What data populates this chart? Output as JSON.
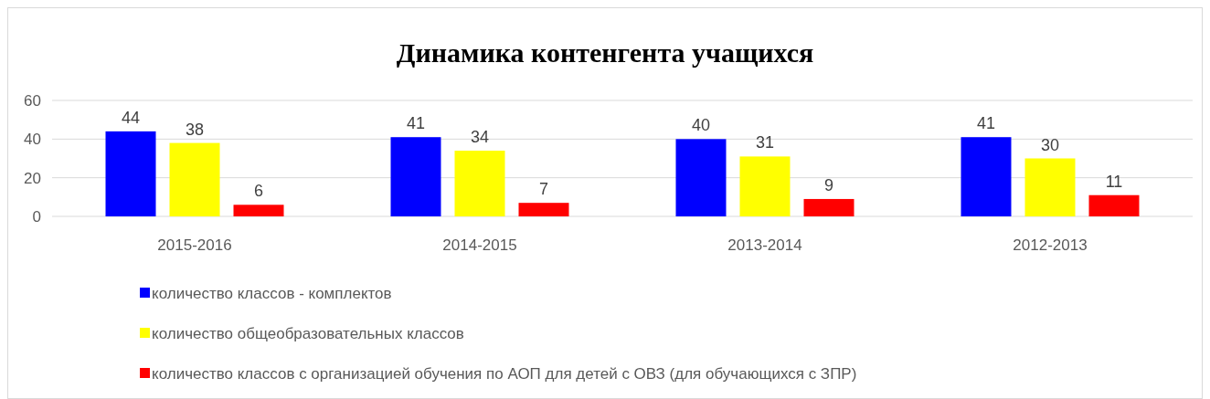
{
  "chart_data": {
    "type": "bar",
    "title": "Динамика контенгента учащихся",
    "categories": [
      "2015-2016",
      "2014-2015",
      "2013-2014",
      "2012-2013"
    ],
    "series": [
      {
        "name": "количество классов - комплектов",
        "color": "#0000ff",
        "values": [
          44,
          41,
          40,
          41
        ]
      },
      {
        "name": "количество общеобразовательных классов",
        "color": "#ffff00",
        "values": [
          38,
          34,
          31,
          30
        ]
      },
      {
        "name": "количество классов с организацией обучения по АОП для детей с ОВЗ (для обучающихся с ЗПР)",
        "color": "#ff0000",
        "values": [
          6,
          7,
          9,
          11
        ]
      }
    ],
    "ylim": [
      0,
      60
    ],
    "yticks": [
      0,
      20,
      40,
      60
    ],
    "grid": "y",
    "legend": "bottom",
    "data_labels": true
  }
}
